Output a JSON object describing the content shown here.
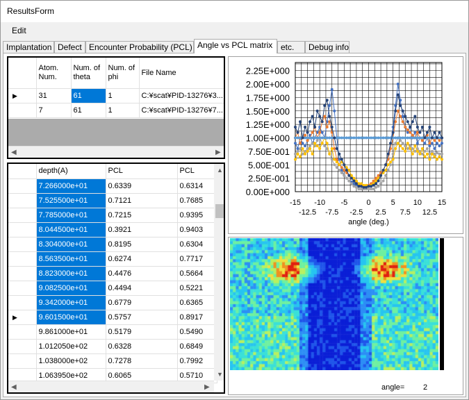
{
  "window": {
    "title": "ResultsForm"
  },
  "menu": {
    "edit": "Edit"
  },
  "tabs": [
    {
      "label": "Implantation"
    },
    {
      "label": "Defect"
    },
    {
      "label": "Encounter Probability (PCL)"
    },
    {
      "label": "Angle vs PCL matrix"
    },
    {
      "label": "etc."
    },
    {
      "label": "Debug info"
    }
  ],
  "top_grid": {
    "headers": {
      "atom": "Atom. Num.",
      "theta": "Num. of theta",
      "phi": "Num. of phi",
      "file": "File Name"
    },
    "rows": [
      {
        "atom": "31",
        "theta": "61",
        "phi": "1",
        "file": "C:¥scat¥PID-13276¥3..."
      },
      {
        "atom": "7",
        "theta": "61",
        "phi": "1",
        "file": "C:¥scat¥PID-13276¥7..."
      }
    ]
  },
  "bottom_grid": {
    "headers": {
      "depth": "depth(A)",
      "pcl1": "PCL",
      "pcl2": "PCL"
    },
    "rows": [
      {
        "depth": "7.266000e+01",
        "pcl1": "0.6339",
        "pcl2": "0.6314"
      },
      {
        "depth": "7.525500e+01",
        "pcl1": "0.7121",
        "pcl2": "0.7685"
      },
      {
        "depth": "7.785000e+01",
        "pcl1": "0.7215",
        "pcl2": "0.9395"
      },
      {
        "depth": "8.044500e+01",
        "pcl1": "0.3921",
        "pcl2": "0.9403"
      },
      {
        "depth": "8.304000e+01",
        "pcl1": "0.8195",
        "pcl2": "0.6304"
      },
      {
        "depth": "8.563500e+01",
        "pcl1": "0.6274",
        "pcl2": "0.7717"
      },
      {
        "depth": "8.823000e+01",
        "pcl1": "0.4476",
        "pcl2": "0.5664"
      },
      {
        "depth": "9.082500e+01",
        "pcl1": "0.4494",
        "pcl2": "0.5221"
      },
      {
        "depth": "9.342000e+01",
        "pcl1": "0.6779",
        "pcl2": "0.6365"
      },
      {
        "depth": "9.601500e+01",
        "pcl1": "0.5757",
        "pcl2": "0.8917"
      },
      {
        "depth": "9.861000e+01",
        "pcl1": "0.5179",
        "pcl2": "0.5490"
      },
      {
        "depth": "1.012050e+02",
        "pcl1": "0.6328",
        "pcl2": "0.6849"
      },
      {
        "depth": "1.038000e+02",
        "pcl1": "0.7278",
        "pcl2": "0.7992"
      },
      {
        "depth": "1.063950e+02",
        "pcl1": "0.6065",
        "pcl2": "0.5710"
      }
    ]
  },
  "angle_readout": {
    "label": "angle=",
    "value": "2"
  },
  "chart_data": {
    "type": "scatter",
    "title": "",
    "xlabel": "angle (deg.)",
    "ylabel": "",
    "xlim": [
      -15,
      15
    ],
    "ylim": [
      0,
      2.4
    ],
    "x_ticks_top": [
      "-15",
      "-10",
      "-5",
      "0",
      "5",
      "10",
      "15"
    ],
    "x_ticks_bottom": [
      "-12.5",
      "-7.5",
      "-2.5",
      "2.5",
      "7.5",
      "12.5"
    ],
    "y_ticks": [
      "0.00E+000",
      "2.50E-001",
      "5.00E-001",
      "7.50E-001",
      "1.00E+000",
      "1.25E+000",
      "1.50E+000",
      "1.75E+000",
      "2.00E+000",
      "2.25E+000"
    ],
    "grid": true,
    "x": [
      -15,
      -14.5,
      -14,
      -13.5,
      -13,
      -12.5,
      -12,
      -11.5,
      -11,
      -10.5,
      -10,
      -9.5,
      -9,
      -8.5,
      -8,
      -7.5,
      -7,
      -6.5,
      -6,
      -5.5,
      -5,
      -4.5,
      -4,
      -3.5,
      -3,
      -2.5,
      -2,
      -1.5,
      -1,
      -0.5,
      0,
      0.5,
      1,
      1.5,
      2,
      2.5,
      3,
      3.5,
      4,
      4.5,
      5,
      5.5,
      6,
      6.5,
      7,
      7.5,
      8,
      8.5,
      9,
      9.5,
      10,
      10.5,
      11,
      11.5,
      12,
      12.5,
      13,
      13.5,
      14,
      14.5,
      15
    ],
    "series": [
      {
        "color": "#4472c4",
        "values": [
          0.9,
          0.8,
          1.0,
          0.9,
          0.85,
          0.95,
          1.05,
          0.9,
          1.0,
          1.1,
          1.2,
          1.1,
          1.0,
          1.3,
          1.6,
          1.9,
          1.5,
          1.0,
          0.6,
          0.4,
          0.3,
          0.25,
          0.2,
          0.18,
          0.15,
          0.12,
          0.1,
          0.1,
          0.08,
          0.1,
          0.1,
          0.12,
          0.15,
          0.2,
          0.25,
          0.3,
          0.4,
          0.5,
          0.6,
          0.9,
          1.2,
          1.6,
          2.0,
          1.7,
          1.4,
          1.2,
          1.1,
          1.2,
          1.0,
          1.1,
          0.9,
          1.0,
          0.95,
          0.9,
          1.0,
          0.85,
          0.9,
          0.8,
          0.9,
          0.85,
          0.9
        ]
      },
      {
        "color": "#ed7d31",
        "values": [
          1.0,
          1.1,
          0.9,
          1.0,
          1.05,
          0.95,
          1.0,
          1.1,
          1.2,
          1.0,
          1.1,
          1.3,
          1.4,
          1.2,
          1.3,
          1.1,
          0.8,
          0.6,
          0.5,
          0.45,
          0.4,
          0.35,
          0.3,
          0.25,
          0.2,
          0.18,
          0.15,
          0.12,
          0.1,
          0.1,
          0.12,
          0.15,
          0.2,
          0.25,
          0.3,
          0.35,
          0.4,
          0.5,
          0.6,
          0.8,
          1.0,
          1.3,
          1.5,
          1.4,
          1.3,
          1.2,
          1.15,
          1.1,
          1.05,
          1.0,
          1.1,
          1.0,
          0.95,
          1.0,
          1.05,
          0.9,
          1.0,
          0.95,
          1.0,
          0.95,
          1.0
        ]
      },
      {
        "color": "#a5a5a5",
        "values": [
          0.7,
          0.75,
          0.8,
          0.7,
          0.75,
          0.8,
          0.85,
          0.9,
          0.85,
          0.95,
          1.0,
          0.9,
          0.85,
          0.8,
          0.7,
          0.6,
          0.5,
          0.45,
          0.4,
          0.35,
          0.3,
          0.25,
          0.2,
          0.15,
          0.1,
          0.08,
          0.05,
          0.05,
          0.05,
          0.05,
          0.05,
          0.05,
          0.05,
          0.08,
          0.1,
          0.15,
          0.2,
          0.3,
          0.4,
          0.5,
          0.7,
          0.9,
          1.0,
          0.95,
          0.9,
          0.85,
          0.8,
          0.85,
          0.8,
          0.75,
          0.8,
          0.75,
          0.7,
          0.75,
          0.8,
          0.7,
          0.75,
          0.7,
          0.72,
          0.7,
          0.7
        ]
      },
      {
        "color": "#ffc000",
        "values": [
          0.6,
          0.7,
          0.65,
          0.8,
          0.7,
          0.75,
          0.8,
          0.7,
          0.9,
          0.85,
          0.8,
          0.9,
          1.0,
          0.9,
          0.7,
          0.8,
          0.6,
          0.55,
          0.5,
          0.55,
          0.5,
          0.45,
          0.4,
          0.3,
          0.25,
          0.2,
          0.15,
          0.15,
          0.12,
          0.12,
          0.1,
          0.12,
          0.15,
          0.2,
          0.25,
          0.3,
          0.35,
          0.4,
          0.5,
          0.55,
          0.6,
          0.8,
          0.9,
          0.85,
          0.8,
          0.75,
          0.9,
          0.8,
          0.7,
          0.85,
          0.75,
          0.7,
          0.8,
          0.65,
          0.7,
          0.6,
          0.7,
          0.65,
          0.6,
          0.65,
          0.6
        ]
      },
      {
        "color": "#5b9bd5",
        "values": [
          1.0,
          1.0,
          1.0,
          1.0,
          1.0,
          1.0,
          1.0,
          1.0,
          1.0,
          1.0,
          1.0,
          1.0,
          1.0,
          1.0,
          1.0,
          1.0,
          1.0,
          1.0,
          1.0,
          1.0,
          1.0,
          1.0,
          1.0,
          1.0,
          1.0,
          1.0,
          1.0,
          1.0,
          1.0,
          1.0,
          1.0,
          1.0,
          1.0,
          1.0,
          1.0,
          1.0,
          1.0,
          1.0,
          1.0,
          1.0,
          1.0,
          1.0,
          1.0,
          1.0,
          1.0,
          1.0,
          1.0,
          1.0,
          1.0,
          1.0,
          1.0,
          1.0,
          1.0,
          1.0,
          1.0,
          1.0,
          1.0,
          1.0,
          1.0,
          1.0,
          1.0
        ]
      },
      {
        "color": "#264478",
        "values": [
          1.2,
          1.1,
          1.3,
          1.0,
          1.2,
          1.1,
          1.3,
          1.4,
          1.2,
          1.5,
          1.4,
          1.3,
          1.6,
          1.7,
          1.4,
          1.2,
          1.0,
          0.8,
          0.7,
          0.6,
          0.5,
          0.4,
          0.3,
          0.25,
          0.2,
          0.15,
          0.1,
          0.1,
          0.08,
          0.08,
          0.1,
          0.1,
          0.12,
          0.15,
          0.2,
          0.3,
          0.4,
          0.5,
          0.7,
          0.9,
          1.1,
          1.5,
          1.8,
          1.6,
          1.5,
          1.4,
          1.3,
          1.2,
          1.3,
          1.4,
          1.2,
          1.1,
          1.2,
          1.0,
          1.1,
          1.2,
          1.0,
          1.1,
          1.0,
          1.1,
          1.0
        ]
      }
    ]
  },
  "heatmap": {
    "rows": 44,
    "cols": 72,
    "palette": [
      "#0b1fd6",
      "#1f55ea",
      "#2c8ef5",
      "#27c4f0",
      "#3ae0d8",
      "#6ef0a0",
      "#b8f060",
      "#f0e040",
      "#f09020",
      "#e02010"
    ]
  }
}
